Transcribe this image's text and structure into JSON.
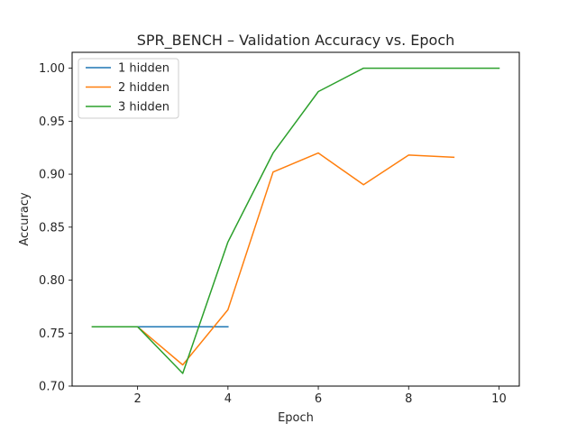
{
  "chart_data": {
    "type": "line",
    "title": "SPR_BENCH – Validation Accuracy vs. Epoch",
    "xlabel": "Epoch",
    "ylabel": "Accuracy",
    "xlim": [
      0.55,
      10.45
    ],
    "ylim": [
      0.7,
      1.015
    ],
    "xticks": [
      2,
      4,
      6,
      8,
      10
    ],
    "yticks": [
      0.7,
      0.75,
      0.8,
      0.85,
      0.9,
      0.95,
      1.0
    ],
    "ytick_labels": [
      "0.70",
      "0.75",
      "0.80",
      "0.85",
      "0.90",
      "0.95",
      "1.00"
    ],
    "grid": false,
    "legend_position": "top-left",
    "series": [
      {
        "name": "1 hidden",
        "color": "#1f77b4",
        "x": [
          1,
          2,
          3,
          4
        ],
        "values": [
          0.756,
          0.756,
          0.756,
          0.756
        ]
      },
      {
        "name": "2 hidden",
        "color": "#ff7f0e",
        "x": [
          1,
          2,
          3,
          4,
          5,
          6,
          7,
          8,
          9
        ],
        "values": [
          0.756,
          0.756,
          0.72,
          0.772,
          0.902,
          0.92,
          0.89,
          0.918,
          0.916
        ]
      },
      {
        "name": "3 hidden",
        "color": "#2ca02c",
        "x": [
          1,
          2,
          3,
          4,
          5,
          6,
          7,
          8,
          9,
          10
        ],
        "values": [
          0.756,
          0.756,
          0.712,
          0.836,
          0.92,
          0.978,
          1.0,
          1.0,
          1.0,
          1.0
        ]
      }
    ]
  }
}
